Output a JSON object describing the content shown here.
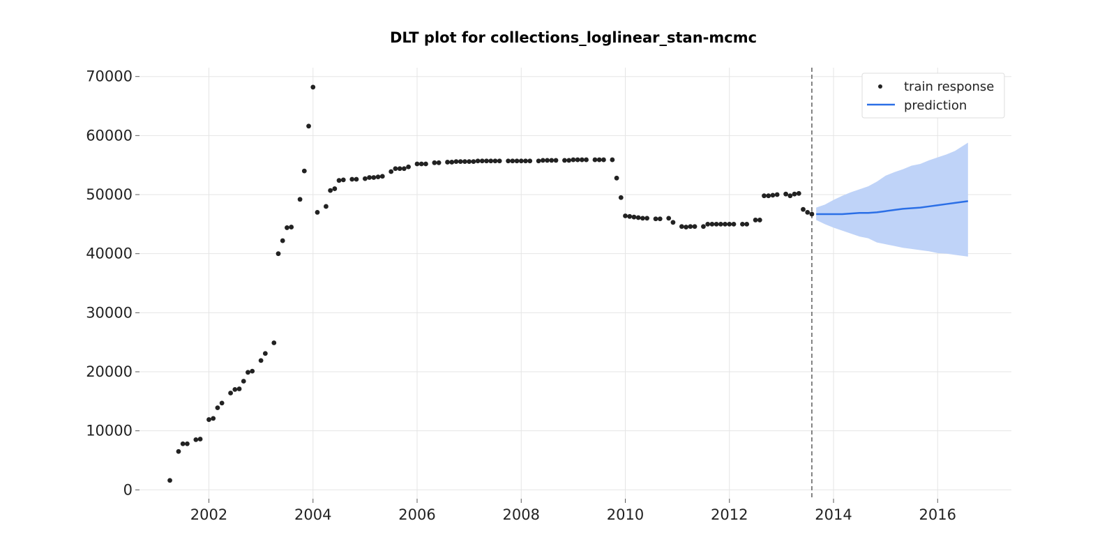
{
  "chart_data": {
    "type": "scatter",
    "title": "DLT plot for collections_loglinear_stan-mcmc",
    "xlabel": "",
    "ylabel": "",
    "xlim": [
      "2000-09-01",
      "2017-06-01"
    ],
    "ylim": [
      -1500,
      71500
    ],
    "x_ticks": [
      "2002",
      "2004",
      "2006",
      "2008",
      "2010",
      "2012",
      "2014",
      "2016"
    ],
    "y_ticks": [
      "0",
      "10000",
      "20000",
      "30000",
      "40000",
      "50000",
      "60000",
      "70000"
    ],
    "grid": true,
    "legend_position": "top-right",
    "train_end_date": "2013-08-01",
    "series": [
      {
        "name": "train response",
        "kind": "scatter",
        "color": "#222222",
        "points": [
          [
            "2001-04-01",
            1600
          ],
          [
            "2001-06-01",
            6500
          ],
          [
            "2001-07-01",
            7800
          ],
          [
            "2001-08-01",
            7800
          ],
          [
            "2001-10-01",
            8500
          ],
          [
            "2001-11-01",
            8600
          ],
          [
            "2002-01-01",
            11900
          ],
          [
            "2002-02-01",
            12100
          ],
          [
            "2002-03-01",
            13900
          ],
          [
            "2002-04-01",
            14700
          ],
          [
            "2002-06-01",
            16400
          ],
          [
            "2002-07-01",
            17000
          ],
          [
            "2002-08-01",
            17100
          ],
          [
            "2002-09-01",
            18400
          ],
          [
            "2002-10-01",
            19900
          ],
          [
            "2002-11-01",
            20100
          ],
          [
            "2003-01-01",
            21900
          ],
          [
            "2003-02-01",
            23100
          ],
          [
            "2003-04-01",
            24900
          ],
          [
            "2003-05-01",
            40000
          ],
          [
            "2003-06-01",
            42200
          ],
          [
            "2003-07-01",
            44400
          ],
          [
            "2003-08-01",
            44500
          ],
          [
            "2003-10-01",
            49200
          ],
          [
            "2003-11-01",
            54000
          ],
          [
            "2003-12-01",
            61600
          ],
          [
            "2004-01-01",
            68200
          ],
          [
            "2004-02-01",
            47000
          ],
          [
            "2004-04-01",
            48000
          ],
          [
            "2004-05-01",
            50700
          ],
          [
            "2004-06-01",
            51000
          ],
          [
            "2004-07-01",
            52400
          ],
          [
            "2004-08-01",
            52500
          ],
          [
            "2004-10-01",
            52600
          ],
          [
            "2004-11-01",
            52600
          ],
          [
            "2005-01-01",
            52700
          ],
          [
            "2005-02-01",
            52900
          ],
          [
            "2005-03-01",
            52900
          ],
          [
            "2005-04-01",
            53000
          ],
          [
            "2005-05-01",
            53100
          ],
          [
            "2005-07-01",
            53900
          ],
          [
            "2005-08-01",
            54400
          ],
          [
            "2005-09-01",
            54400
          ],
          [
            "2005-10-01",
            54400
          ],
          [
            "2005-11-01",
            54700
          ],
          [
            "2006-01-01",
            55200
          ],
          [
            "2006-02-01",
            55200
          ],
          [
            "2006-03-01",
            55200
          ],
          [
            "2006-05-01",
            55400
          ],
          [
            "2006-06-01",
            55400
          ],
          [
            "2006-08-01",
            55500
          ],
          [
            "2006-09-01",
            55500
          ],
          [
            "2006-10-01",
            55600
          ],
          [
            "2006-11-01",
            55600
          ],
          [
            "2006-12-01",
            55600
          ],
          [
            "2007-01-01",
            55600
          ],
          [
            "2007-02-01",
            55600
          ],
          [
            "2007-03-01",
            55700
          ],
          [
            "2007-04-01",
            55700
          ],
          [
            "2007-05-01",
            55700
          ],
          [
            "2007-06-01",
            55700
          ],
          [
            "2007-07-01",
            55700
          ],
          [
            "2007-08-01",
            55700
          ],
          [
            "2007-10-01",
            55700
          ],
          [
            "2007-11-01",
            55700
          ],
          [
            "2007-12-01",
            55700
          ],
          [
            "2008-01-01",
            55700
          ],
          [
            "2008-02-01",
            55700
          ],
          [
            "2008-03-01",
            55700
          ],
          [
            "2008-05-01",
            55700
          ],
          [
            "2008-06-01",
            55800
          ],
          [
            "2008-07-01",
            55800
          ],
          [
            "2008-08-01",
            55800
          ],
          [
            "2008-09-01",
            55800
          ],
          [
            "2008-11-01",
            55800
          ],
          [
            "2008-12-01",
            55800
          ],
          [
            "2009-01-01",
            55900
          ],
          [
            "2009-02-01",
            55900
          ],
          [
            "2009-03-01",
            55900
          ],
          [
            "2009-04-01",
            55900
          ],
          [
            "2009-06-01",
            55900
          ],
          [
            "2009-07-01",
            55900
          ],
          [
            "2009-08-01",
            55900
          ],
          [
            "2009-10-01",
            55900
          ],
          [
            "2009-11-01",
            52800
          ],
          [
            "2009-12-01",
            49500
          ],
          [
            "2010-01-01",
            46400
          ],
          [
            "2010-02-01",
            46300
          ],
          [
            "2010-03-01",
            46200
          ],
          [
            "2010-04-01",
            46100
          ],
          [
            "2010-05-01",
            46000
          ],
          [
            "2010-06-01",
            46000
          ],
          [
            "2010-08-01",
            45900
          ],
          [
            "2010-09-01",
            45900
          ],
          [
            "2010-11-01",
            46000
          ],
          [
            "2010-12-01",
            45300
          ],
          [
            "2011-02-01",
            44600
          ],
          [
            "2011-03-01",
            44500
          ],
          [
            "2011-04-01",
            44600
          ],
          [
            "2011-05-01",
            44600
          ],
          [
            "2011-07-01",
            44600
          ],
          [
            "2011-08-01",
            45000
          ],
          [
            "2011-09-01",
            45000
          ],
          [
            "2011-10-01",
            45000
          ],
          [
            "2011-11-01",
            45000
          ],
          [
            "2011-12-01",
            45000
          ],
          [
            "2012-01-01",
            45000
          ],
          [
            "2012-02-01",
            45000
          ],
          [
            "2012-04-01",
            45000
          ],
          [
            "2012-05-01",
            45000
          ],
          [
            "2012-07-01",
            45700
          ],
          [
            "2012-08-01",
            45700
          ],
          [
            "2012-09-01",
            49800
          ],
          [
            "2012-10-01",
            49800
          ],
          [
            "2012-11-01",
            49900
          ],
          [
            "2012-12-01",
            50000
          ],
          [
            "2013-02-01",
            50100
          ],
          [
            "2013-03-01",
            49800
          ],
          [
            "2013-04-01",
            50100
          ],
          [
            "2013-05-01",
            50200
          ],
          [
            "2013-06-01",
            47500
          ],
          [
            "2013-07-01",
            47000
          ],
          [
            "2013-08-01",
            46700
          ]
        ]
      },
      {
        "name": "prediction",
        "kind": "line",
        "color": "#2b6fe6",
        "band_color": "#bfd3f8",
        "points": [
          [
            "2013-09-01",
            46700,
            45700,
            47800
          ],
          [
            "2013-11-01",
            46700,
            45000,
            48300
          ],
          [
            "2014-01-01",
            46700,
            44400,
            49100
          ],
          [
            "2014-03-01",
            46700,
            43900,
            49800
          ],
          [
            "2014-05-01",
            46800,
            43400,
            50400
          ],
          [
            "2014-07-01",
            46900,
            42900,
            50900
          ],
          [
            "2014-09-01",
            46900,
            42600,
            51400
          ],
          [
            "2014-11-01",
            47000,
            41900,
            52200
          ],
          [
            "2015-01-01",
            47200,
            41600,
            53200
          ],
          [
            "2015-03-01",
            47400,
            41300,
            53800
          ],
          [
            "2015-05-01",
            47600,
            41000,
            54300
          ],
          [
            "2015-07-01",
            47700,
            40800,
            54900
          ],
          [
            "2015-09-01",
            47800,
            40600,
            55200
          ],
          [
            "2015-11-01",
            48000,
            40400,
            55800
          ],
          [
            "2016-01-01",
            48200,
            40100,
            56300
          ],
          [
            "2016-03-01",
            48400,
            40000,
            56800
          ],
          [
            "2016-05-01",
            48600,
            39800,
            57400
          ],
          [
            "2016-08-01",
            48900,
            39500,
            58800
          ]
        ]
      }
    ]
  }
}
